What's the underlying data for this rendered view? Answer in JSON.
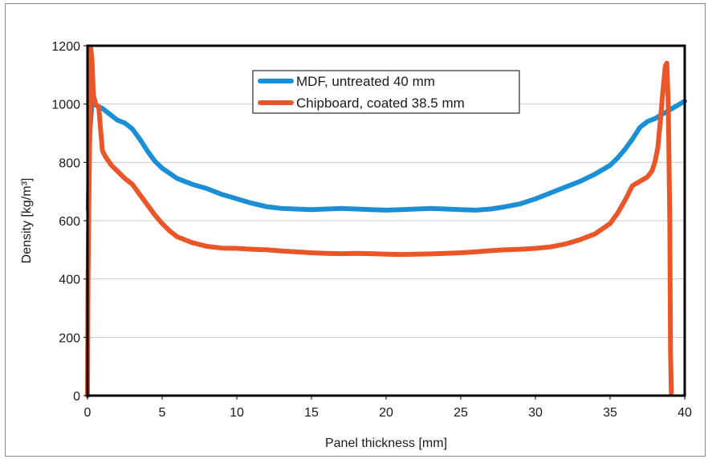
{
  "chart_data": {
    "type": "line",
    "title": "",
    "xlabel": "Panel thickness [mm]",
    "ylabel": "Density [kg/m³]",
    "xlim": [
      0,
      40
    ],
    "ylim": [
      0,
      1200
    ],
    "x_ticks": [
      "0",
      "5",
      "10",
      "15",
      "20",
      "25",
      "30",
      "35",
      "40"
    ],
    "y_ticks": [
      "0",
      "200",
      "400",
      "600",
      "800",
      "1000",
      "1200"
    ],
    "grid": "horizontal",
    "legend_position": "top-center",
    "series": [
      {
        "name": "MDF, untreated 40 mm",
        "color": "#1a8fd6",
        "x": [
          0.05,
          0.15,
          0.3,
          0.6,
          1,
          1.5,
          2,
          2.5,
          3,
          3.5,
          4,
          4.5,
          5,
          6,
          7,
          8,
          9,
          10,
          11,
          12,
          13,
          14,
          15,
          16,
          17,
          18,
          19,
          20,
          21,
          22,
          23,
          24,
          25,
          26,
          27,
          28,
          29,
          30,
          31,
          32,
          33,
          34,
          35,
          35.5,
          36,
          36.5,
          37,
          37.5,
          38,
          38.5,
          39,
          39.5,
          40
        ],
        "y": [
          640,
          900,
          1005,
          995,
          985,
          965,
          945,
          935,
          915,
          880,
          840,
          805,
          780,
          745,
          725,
          710,
          690,
          675,
          660,
          648,
          642,
          640,
          638,
          640,
          642,
          640,
          638,
          636,
          638,
          640,
          642,
          640,
          638,
          636,
          640,
          648,
          658,
          675,
          695,
          715,
          735,
          760,
          790,
          815,
          845,
          880,
          920,
          940,
          950,
          965,
          980,
          995,
          1010
        ]
      },
      {
        "name": "Chipboard, coated 38.5 mm",
        "color": "#ea5628",
        "x": [
          0,
          0.03,
          0.08,
          0.15,
          0.22,
          0.3,
          0.4,
          0.55,
          0.75,
          0.9,
          1.0,
          1.2,
          1.6,
          2.0,
          2.5,
          3.0,
          3.5,
          4.0,
          4.5,
          5.0,
          5.5,
          6,
          7,
          8,
          9,
          10,
          11,
          12,
          13,
          14,
          15,
          16,
          17,
          18,
          19,
          20,
          21,
          22,
          23,
          24,
          25,
          26,
          27,
          28,
          29,
          30,
          31,
          32,
          33,
          34,
          35,
          35.5,
          36,
          36.5,
          37,
          37.5,
          37.8,
          38.0,
          38.2,
          38.4,
          38.55,
          38.7,
          38.8,
          38.9,
          39.0,
          39.05,
          39.1
        ],
        "y": [
          0,
          380,
          620,
          900,
          1190,
          1150,
          1030,
          1000,
          990,
          900,
          840,
          820,
          790,
          770,
          745,
          725,
          690,
          655,
          620,
          590,
          565,
          545,
          525,
          512,
          506,
          505,
          502,
          500,
          496,
          493,
          490,
          488,
          487,
          488,
          487,
          485,
          484,
          485,
          486,
          488,
          490,
          493,
          497,
          500,
          502,
          505,
          510,
          520,
          535,
          555,
          590,
          625,
          670,
          720,
          735,
          750,
          770,
          800,
          850,
          960,
          1050,
          1130,
          1140,
          1000,
          600,
          150,
          10
        ]
      }
    ]
  }
}
